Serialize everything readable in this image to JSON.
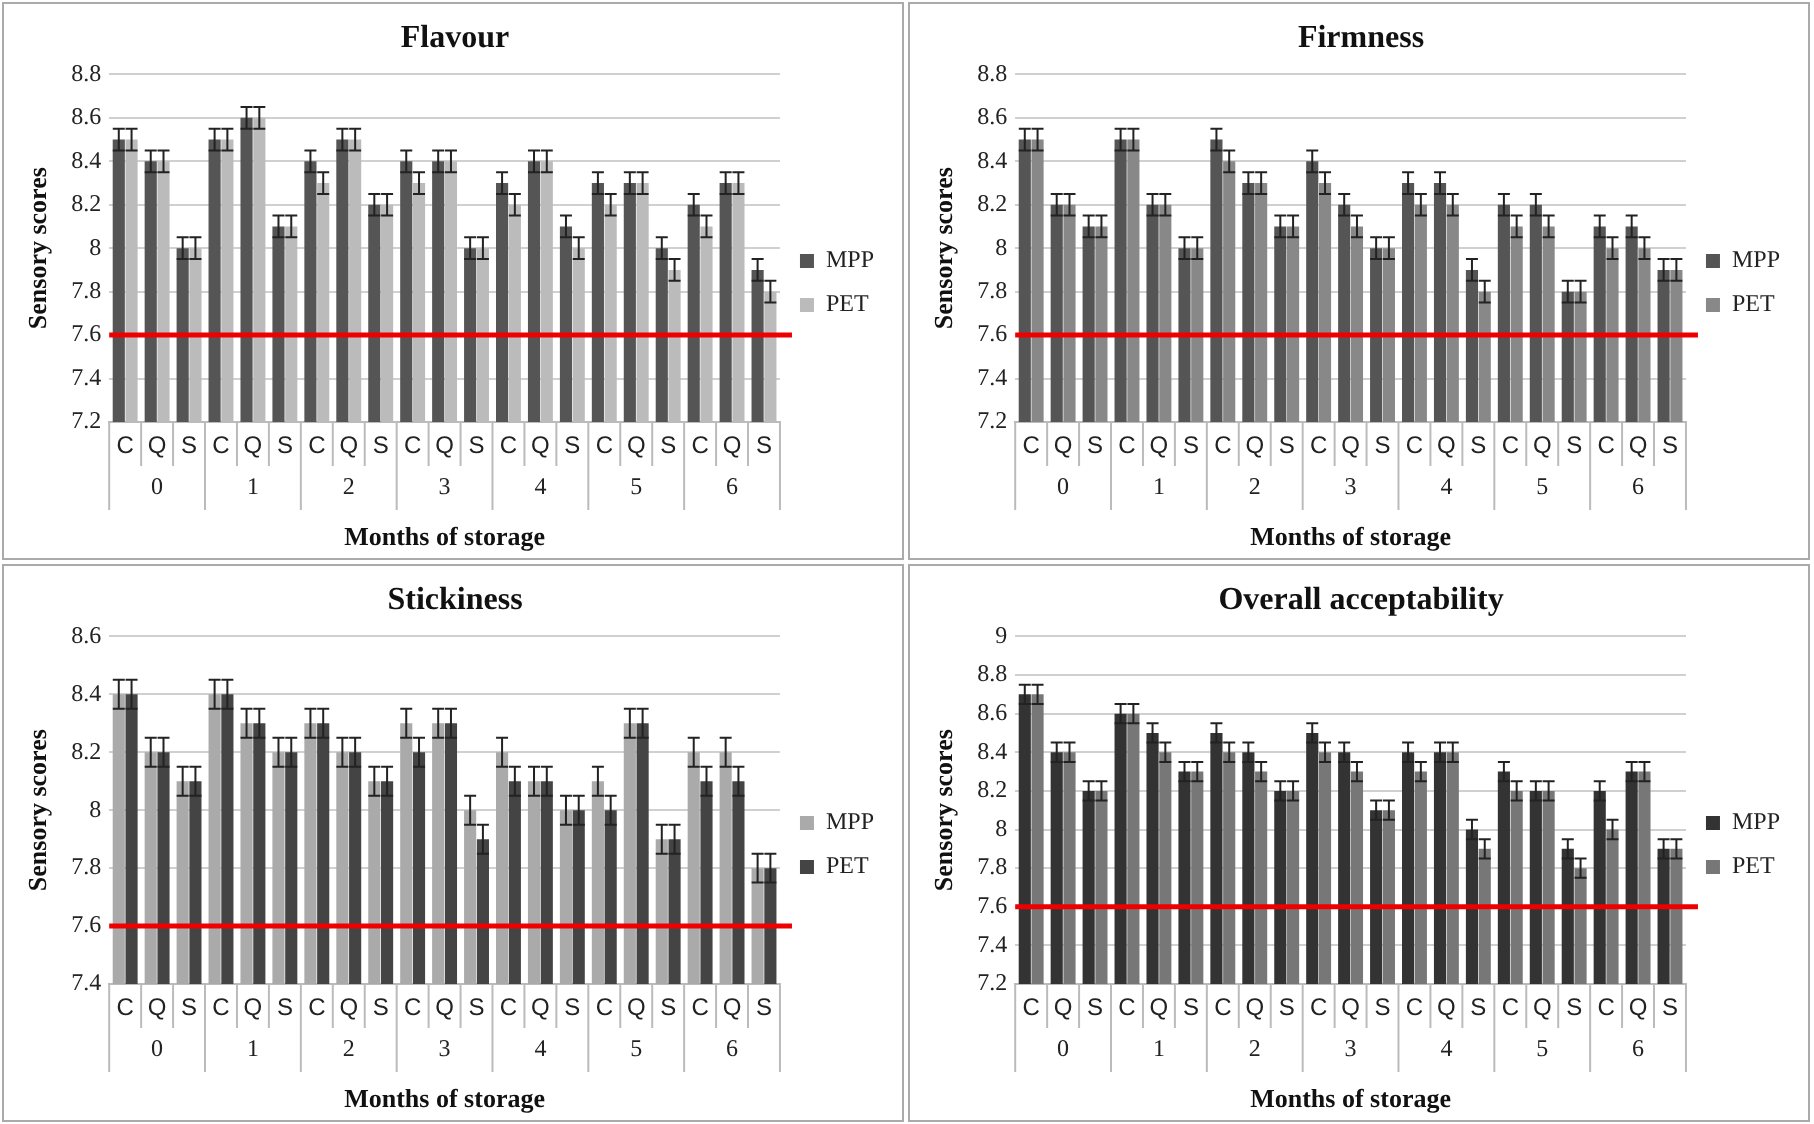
{
  "chart_data": [
    {
      "type": "bar",
      "title": "Flavour",
      "xlabel": "Months of storage",
      "ylabel": "Sensory scores",
      "categories": [
        "C",
        "Q",
        "S",
        "C",
        "Q",
        "S",
        "C",
        "Q",
        "S",
        "C",
        "Q",
        "S",
        "C",
        "Q",
        "S",
        "C",
        "Q",
        "S",
        "C",
        "Q",
        "S"
      ],
      "annotations": [
        "0",
        "1",
        "2",
        "3",
        "4",
        "5",
        "6"
      ],
      "series": [
        {
          "name": "MPP",
          "color": "#555555",
          "values": [
            8.5,
            8.4,
            8.0,
            8.5,
            8.6,
            8.1,
            8.4,
            8.5,
            8.2,
            8.4,
            8.4,
            8.0,
            8.3,
            8.4,
            8.1,
            8.3,
            8.3,
            8.0,
            8.2,
            8.3,
            7.9
          ],
          "errors": [
            0.05,
            0.05,
            0.05,
            0.05,
            0.05,
            0.05,
            0.05,
            0.05,
            0.05,
            0.05,
            0.05,
            0.05,
            0.05,
            0.05,
            0.05,
            0.05,
            0.05,
            0.05,
            0.05,
            0.05,
            0.05
          ]
        },
        {
          "name": "PET",
          "color": "#bbbbbb",
          "values": [
            8.5,
            8.4,
            8.0,
            8.5,
            8.6,
            8.1,
            8.3,
            8.5,
            8.2,
            8.3,
            8.4,
            8.0,
            8.2,
            8.4,
            8.0,
            8.2,
            8.3,
            7.9,
            8.1,
            8.3,
            7.8
          ],
          "errors": [
            0.05,
            0.05,
            0.05,
            0.05,
            0.05,
            0.05,
            0.05,
            0.05,
            0.05,
            0.05,
            0.05,
            0.05,
            0.05,
            0.05,
            0.05,
            0.05,
            0.05,
            0.05,
            0.05,
            0.05,
            0.05
          ]
        }
      ],
      "ylim": [
        7.2,
        8.8
      ],
      "yticks": [
        7.2,
        7.4,
        7.6,
        7.8,
        8,
        8.2,
        8.4,
        8.6,
        8.8
      ],
      "grid": "y",
      "legend": "right",
      "ref_lines": [
        {
          "axis": "y",
          "value": 7.6,
          "color": "#ee0000"
        }
      ]
    },
    {
      "type": "bar",
      "title": "Firmness",
      "xlabel": "Months of storage",
      "ylabel": "Sensory scores",
      "categories": [
        "C",
        "Q",
        "S",
        "C",
        "Q",
        "S",
        "C",
        "Q",
        "S",
        "C",
        "Q",
        "S",
        "C",
        "Q",
        "S",
        "C",
        "Q",
        "S",
        "C",
        "Q",
        "S"
      ],
      "annotations": [
        "0",
        "1",
        "2",
        "3",
        "4",
        "5",
        "6"
      ],
      "series": [
        {
          "name": "MPP",
          "color": "#555555",
          "values": [
            8.5,
            8.2,
            8.1,
            8.5,
            8.2,
            8.0,
            8.5,
            8.3,
            8.1,
            8.4,
            8.2,
            8.0,
            8.3,
            8.3,
            7.9,
            8.2,
            8.2,
            7.8,
            8.1,
            8.1,
            7.9
          ],
          "errors": [
            0.05,
            0.05,
            0.05,
            0.05,
            0.05,
            0.05,
            0.05,
            0.05,
            0.05,
            0.05,
            0.05,
            0.05,
            0.05,
            0.05,
            0.05,
            0.05,
            0.05,
            0.05,
            0.05,
            0.05,
            0.05
          ]
        },
        {
          "name": "PET",
          "color": "#888888",
          "values": [
            8.5,
            8.2,
            8.1,
            8.5,
            8.2,
            8.0,
            8.4,
            8.3,
            8.1,
            8.3,
            8.1,
            8.0,
            8.2,
            8.2,
            7.8,
            8.1,
            8.1,
            7.8,
            8.0,
            8.0,
            7.9
          ],
          "errors": [
            0.05,
            0.05,
            0.05,
            0.05,
            0.05,
            0.05,
            0.05,
            0.05,
            0.05,
            0.05,
            0.05,
            0.05,
            0.05,
            0.05,
            0.05,
            0.05,
            0.05,
            0.05,
            0.05,
            0.05,
            0.05
          ]
        }
      ],
      "ylim": [
        7.2,
        8.8
      ],
      "yticks": [
        7.2,
        7.4,
        7.6,
        7.8,
        8,
        8.2,
        8.4,
        8.6,
        8.8
      ],
      "grid": "y",
      "legend": "right",
      "ref_lines": [
        {
          "axis": "y",
          "value": 7.6,
          "color": "#ee0000"
        }
      ]
    },
    {
      "type": "bar",
      "title": "Stickiness",
      "xlabel": "Months of storage",
      "ylabel": "Sensory scores",
      "categories": [
        "C",
        "Q",
        "S",
        "C",
        "Q",
        "S",
        "C",
        "Q",
        "S",
        "C",
        "Q",
        "S",
        "C",
        "Q",
        "S",
        "C",
        "Q",
        "S",
        "C",
        "Q",
        "S"
      ],
      "annotations": [
        "0",
        "1",
        "2",
        "3",
        "4",
        "5",
        "6"
      ],
      "series": [
        {
          "name": "MPP",
          "color": "#aaaaaa",
          "values": [
            8.4,
            8.2,
            8.1,
            8.4,
            8.3,
            8.2,
            8.3,
            8.2,
            8.1,
            8.3,
            8.3,
            8.0,
            8.2,
            8.1,
            8.0,
            8.1,
            8.3,
            7.9,
            8.2,
            8.2,
            7.8
          ],
          "errors": [
            0.05,
            0.05,
            0.05,
            0.05,
            0.05,
            0.05,
            0.05,
            0.05,
            0.05,
            0.05,
            0.05,
            0.05,
            0.05,
            0.05,
            0.05,
            0.05,
            0.05,
            0.05,
            0.05,
            0.05,
            0.05
          ]
        },
        {
          "name": "PET",
          "color": "#444444",
          "values": [
            8.4,
            8.2,
            8.1,
            8.4,
            8.3,
            8.2,
            8.3,
            8.2,
            8.1,
            8.2,
            8.3,
            7.9,
            8.1,
            8.1,
            8.0,
            8.0,
            8.3,
            7.9,
            8.1,
            8.1,
            7.8
          ],
          "errors": [
            0.05,
            0.05,
            0.05,
            0.05,
            0.05,
            0.05,
            0.05,
            0.05,
            0.05,
            0.05,
            0.05,
            0.05,
            0.05,
            0.05,
            0.05,
            0.05,
            0.05,
            0.05,
            0.05,
            0.05,
            0.05
          ]
        }
      ],
      "ylim": [
        7.4,
        8.6
      ],
      "yticks": [
        7.4,
        7.6,
        7.8,
        8,
        8.2,
        8.4,
        8.6
      ],
      "grid": "y",
      "legend": "right",
      "ref_lines": [
        {
          "axis": "y",
          "value": 7.6,
          "color": "#ee0000"
        }
      ]
    },
    {
      "type": "bar",
      "title": "Overall acceptability",
      "xlabel": "Months of storage",
      "ylabel": "Sensory scores",
      "categories": [
        "C",
        "Q",
        "S",
        "C",
        "Q",
        "S",
        "C",
        "Q",
        "S",
        "C",
        "Q",
        "S",
        "C",
        "Q",
        "S",
        "C",
        "Q",
        "S",
        "C",
        "Q",
        "S"
      ],
      "annotations": [
        "0",
        "1",
        "2",
        "3",
        "4",
        "5",
        "6"
      ],
      "series": [
        {
          "name": "MPP",
          "color": "#333333",
          "values": [
            8.7,
            8.4,
            8.2,
            8.6,
            8.5,
            8.3,
            8.5,
            8.4,
            8.2,
            8.5,
            8.4,
            8.1,
            8.4,
            8.4,
            8.0,
            8.3,
            8.2,
            7.9,
            8.2,
            8.3,
            7.9
          ],
          "errors": [
            0.05,
            0.05,
            0.05,
            0.05,
            0.05,
            0.05,
            0.05,
            0.05,
            0.05,
            0.05,
            0.05,
            0.05,
            0.05,
            0.05,
            0.05,
            0.05,
            0.05,
            0.05,
            0.05,
            0.05,
            0.05
          ]
        },
        {
          "name": "PET",
          "color": "#777777",
          "values": [
            8.7,
            8.4,
            8.2,
            8.6,
            8.4,
            8.3,
            8.4,
            8.3,
            8.2,
            8.4,
            8.3,
            8.1,
            8.3,
            8.4,
            7.9,
            8.2,
            8.2,
            7.8,
            8.0,
            8.3,
            7.9
          ],
          "errors": [
            0.05,
            0.05,
            0.05,
            0.05,
            0.05,
            0.05,
            0.05,
            0.05,
            0.05,
            0.05,
            0.05,
            0.05,
            0.05,
            0.05,
            0.05,
            0.05,
            0.05,
            0.05,
            0.05,
            0.05,
            0.05
          ]
        }
      ],
      "ylim": [
        7.2,
        9
      ],
      "yticks": [
        7.2,
        7.4,
        7.6,
        7.8,
        8,
        8.2,
        8.4,
        8.6,
        8.8,
        9
      ],
      "grid": "y",
      "legend": "right",
      "ref_lines": [
        {
          "axis": "y",
          "value": 7.6,
          "color": "#ee0000"
        }
      ]
    }
  ]
}
